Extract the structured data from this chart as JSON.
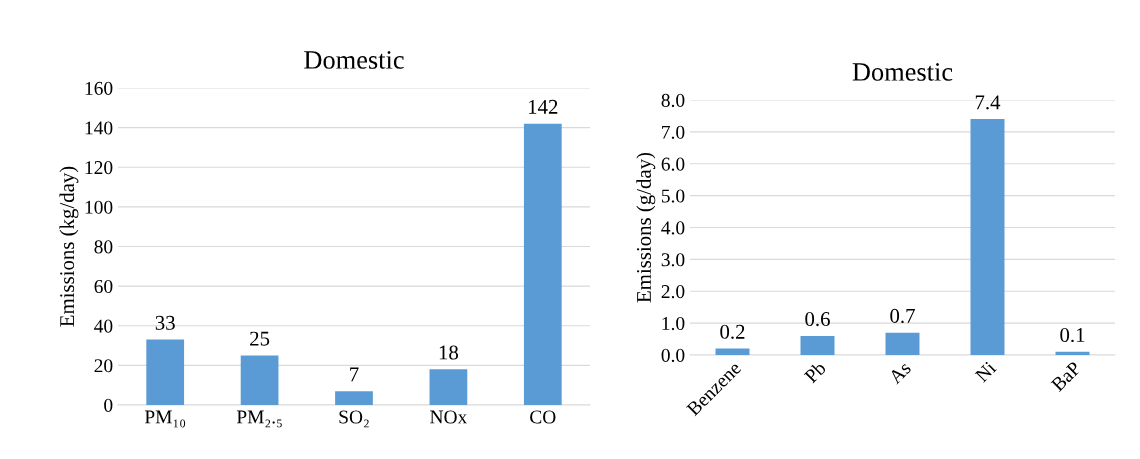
{
  "chart_data": [
    {
      "type": "bar",
      "title": "Domestic",
      "ylabel": "Emissions (kg/day)",
      "categories": [
        "PM₁₀",
        "PM₂.₅",
        "SO₂",
        "NOx",
        "CO"
      ],
      "values": [
        33,
        25,
        7,
        18,
        142
      ],
      "color": "#5b9bd5",
      "ylim": [
        0,
        160
      ],
      "yticks": [
        0,
        20,
        40,
        60,
        80,
        100,
        120,
        140,
        160
      ],
      "grid": "y",
      "data_labels": true
    },
    {
      "type": "bar",
      "title": "Domestic",
      "ylabel": "Emissions (g/day)",
      "categories": [
        "Benzene",
        "Pb",
        "As",
        "Ni",
        "BaP"
      ],
      "values": [
        0.2,
        0.6,
        0.7,
        7.4,
        0.1
      ],
      "color": "#5b9bd5",
      "ylim": [
        0,
        8
      ],
      "yticks": [
        {
          "value": 0,
          "label": "0.0"
        },
        {
          "value": 1,
          "label": "1.0"
        },
        {
          "value": 2,
          "label": "2.0"
        },
        {
          "value": 3,
          "label": "3.0"
        },
        {
          "value": 4,
          "label": "4.0"
        },
        {
          "value": 5,
          "label": "5.0"
        },
        {
          "value": 6,
          "label": "6.0"
        },
        {
          "value": 7,
          "label": "7.0"
        },
        {
          "value": 8,
          "label": "8.0"
        }
      ],
      "grid": "y",
      "data_labels": true
    }
  ]
}
